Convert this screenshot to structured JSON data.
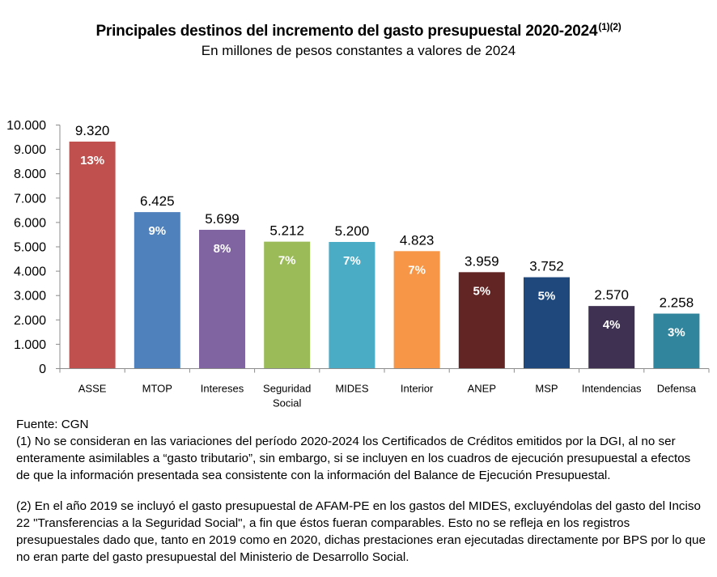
{
  "title": "Principales destinos del incremento del gasto presupuestal 2020-2024",
  "title_superscript": "(1)(2)",
  "subtitle": "En millones de pesos constantes a valores de 2024",
  "source": "Fuente: CGN",
  "note_1": "(1) No se consideran en las variaciones del período 2020-2024 los Certificados de Créditos emitidos por la DGI, al no ser enteramente asimilables a “gasto tributario”, sin embargo, si se incluyen en los cuadros de ejecución presupuestal a efectos de que la información presentada sea consistente con la información del Balance de Ejecución Presupuestal.",
  "note_2": "(2) En el año 2019 se incluyó el gasto presupuestal de AFAM-PE en los gastos del MIDES, excluyéndolas del gasto del Inciso 22 \"Transferencias a la Seguridad Social\", a fin que éstos fueran comparables. Esto no se refleja en los registros presupuestales dado que, tanto en 2019 como en 2020, dichas prestaciones eran ejecutadas directamente por BPS por lo que no eran parte del gasto presupuestal del Ministerio de Desarrollo Social.",
  "chart_data": {
    "type": "bar",
    "categories": [
      "ASSE",
      "MTOP",
      "Intereses",
      "Seguridad Social",
      "MIDES",
      "Interior",
      "ANEP",
      "MSP",
      "Intendencias",
      "Defensa"
    ],
    "values": [
      9320,
      6425,
      5699,
      5212,
      5200,
      4823,
      3959,
      3752,
      2570,
      2258
    ],
    "value_labels": [
      "9.320",
      "6.425",
      "5.699",
      "5.212",
      "5.200",
      "4.823",
      "3.959",
      "3.752",
      "2.570",
      "2.258"
    ],
    "percent_labels": [
      "13%",
      "9%",
      "8%",
      "7%",
      "7%",
      "7%",
      "5%",
      "5%",
      "4%",
      "3%"
    ],
    "colors": [
      "#C0504D",
      "#4F81BD",
      "#8064A2",
      "#9BBB59",
      "#4BACC6",
      "#F79646",
      "#632523",
      "#1F497D",
      "#3F3151",
      "#31859C"
    ],
    "ylim": [
      0,
      10000
    ],
    "yticks": [
      0,
      1000,
      2000,
      3000,
      4000,
      5000,
      6000,
      7000,
      8000,
      9000,
      10000
    ],
    "ytick_labels": [
      "0",
      "1.000",
      "2.000",
      "3.000",
      "4.000",
      "5.000",
      "6.000",
      "7.000",
      "8.000",
      "9.000",
      "10.000"
    ],
    "grid": false,
    "legend": "none",
    "xlabel": "",
    "ylabel": ""
  }
}
